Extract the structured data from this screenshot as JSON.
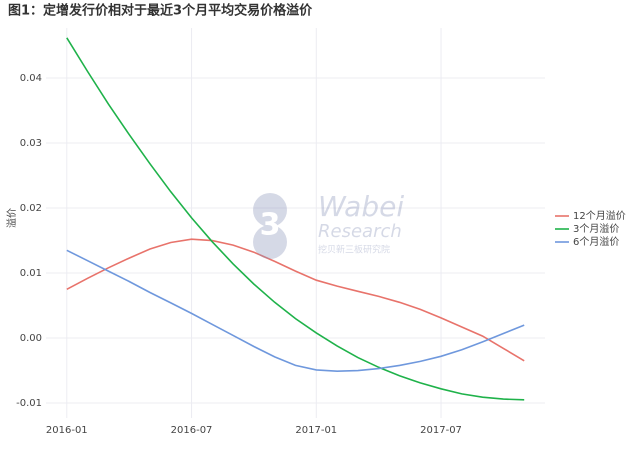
{
  "chart_data": {
    "type": "line",
    "title": "图1：定增发行价相对于最近3个月平均交易价格溢价",
    "y_label": "溢价",
    "watermark": [
      "Wabei",
      "Research",
      "挖贝新三板研究院"
    ],
    "x": [
      "2016-01",
      "2016-02",
      "2016-03",
      "2016-04",
      "2016-05",
      "2016-06",
      "2016-07",
      "2016-08",
      "2016-09",
      "2016-10",
      "2016-11",
      "2016-12",
      "2017-01",
      "2017-02",
      "2017-03",
      "2017-04",
      "2017-05",
      "2017-06",
      "2017-07",
      "2017-08",
      "2017-09",
      "2017-10",
      "2017-11"
    ],
    "xlim": [
      "2015-12",
      "2017-12"
    ],
    "xticks": [
      "2016-01",
      "2016-07",
      "2017-01",
      "2017-07"
    ],
    "ylim": [
      -0.0123,
      0.0477
    ],
    "yticks": [
      -0.01,
      {
        "value": 0,
        "label": "0.00"
      },
      0.01,
      0.02,
      0.03,
      0.04
    ],
    "grid": true,
    "legend_position": "right",
    "series": [
      {
        "name": "12个月溢价",
        "color": "#e8736b",
        "values": [
          0.0075,
          0.0092,
          0.0108,
          0.0123,
          0.0137,
          0.0147,
          0.0152,
          0.015,
          0.0143,
          0.0132,
          0.0118,
          0.0103,
          0.0089,
          0.008,
          0.0072,
          0.0064,
          0.0055,
          0.0044,
          0.0031,
          0.0017,
          0.0003,
          -0.0016,
          -0.0035
        ]
      },
      {
        "name": "3个月溢价",
        "color": "#1fb24a",
        "values": [
          0.0462,
          0.041,
          0.036,
          0.0313,
          0.0268,
          0.0225,
          0.0185,
          0.0148,
          0.0114,
          0.0083,
          0.0055,
          0.003,
          0.0008,
          -0.0012,
          -0.003,
          -0.0045,
          -0.0058,
          -0.0069,
          -0.0078,
          -0.0086,
          -0.0091,
          -0.0094,
          -0.0095
        ]
      },
      {
        "name": "6个月溢价",
        "color": "#6f98dd",
        "values": [
          0.0135,
          0.0119,
          0.0103,
          0.0087,
          0.007,
          0.0054,
          0.0038,
          0.0021,
          0.0004,
          -0.0013,
          -0.0029,
          -0.0042,
          -0.0049,
          -0.0051,
          -0.005,
          -0.0047,
          -0.0042,
          -0.0036,
          -0.0028,
          -0.0018,
          -0.0006,
          0.0007,
          0.002
        ]
      }
    ]
  }
}
